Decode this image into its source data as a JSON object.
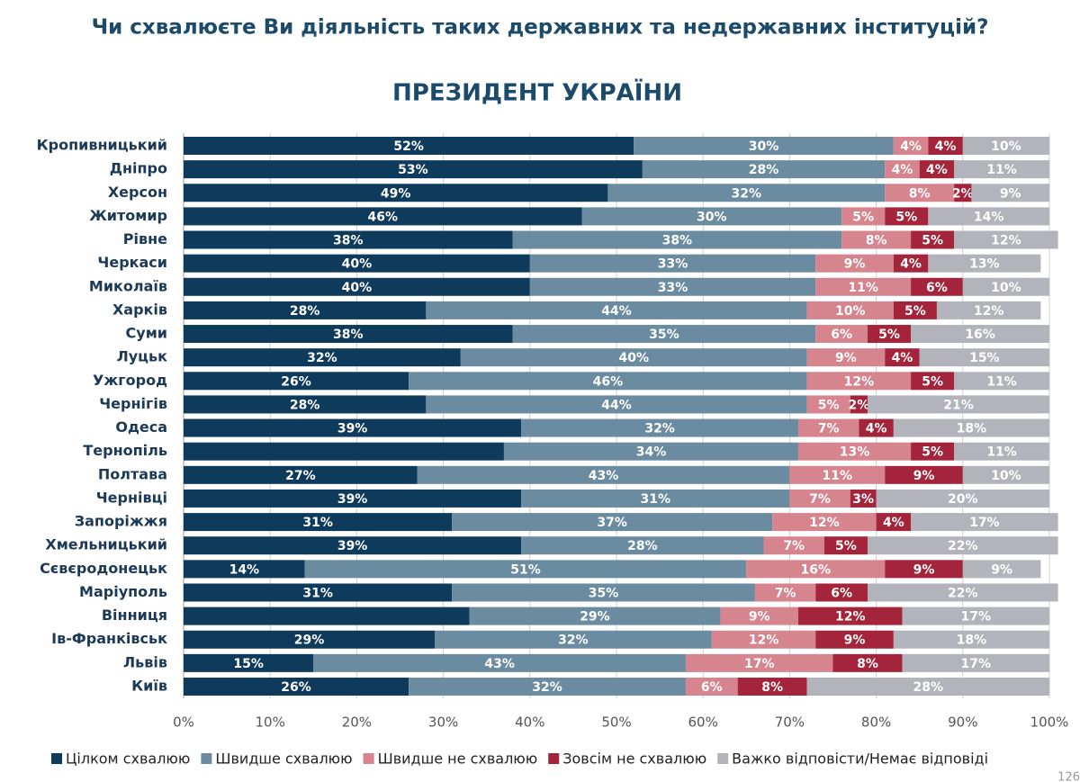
{
  "chart_data": {
    "type": "stacked-bar-horizontal",
    "title": "Чи схвалюєте Ви діяльність таких державних та недержавних інституцій?",
    "subtitle": "ПРЕЗИДЕНТ УКРАЇНИ",
    "categories": [
      "Кропивницький",
      "Дніпро",
      "Херсон",
      "Житомир",
      "Рівне",
      "Черкаси",
      "Миколаїв",
      "Харків",
      "Суми",
      "Луцьк",
      "Ужгород",
      "Чернігів",
      "Одеса",
      "Тернопіль",
      "Полтава",
      "Чернівці",
      "Запоріжжя",
      "Хмельницький",
      "Сєвєродонецьк",
      "Маріуполь",
      "Вінниця",
      "Ів-Франківськ",
      "Львів",
      "Київ"
    ],
    "series": [
      {
        "name": "Цілком схвалюю",
        "color": "#0e3a5c",
        "values": [
          52,
          53,
          49,
          46,
          38,
          40,
          40,
          28,
          38,
          32,
          26,
          28,
          39,
          37,
          27,
          39,
          31,
          39,
          14,
          31,
          33,
          29,
          15,
          26
        ],
        "value_labels": [
          "52%",
          "53%",
          "49%",
          "46%",
          "38%",
          "40%",
          "40%",
          "28%",
          "38%",
          "32%",
          "26%",
          "28%",
          "39%",
          null,
          "27%",
          "39%",
          "31%",
          "39%",
          "14%",
          "31%",
          null,
          "29%",
          "15%",
          "26%"
        ]
      },
      {
        "name": "Швидше схвалюю",
        "color": "#6b8ba1",
        "values": [
          30,
          28,
          32,
          30,
          38,
          33,
          33,
          44,
          35,
          40,
          46,
          44,
          32,
          34,
          43,
          31,
          37,
          28,
          51,
          35,
          29,
          32,
          43,
          32
        ],
        "value_labels": [
          "30%",
          "28%",
          "32%",
          "30%",
          "38%",
          "33%",
          "33%",
          "44%",
          "35%",
          "40%",
          "46%",
          "44%",
          "32%",
          "34%",
          "43%",
          "31%",
          "37%",
          "28%",
          "51%",
          "35%",
          "29%",
          "32%",
          "43%",
          "32%"
        ]
      },
      {
        "name": "Швидше не схвалюю",
        "color": "#d6848d",
        "values": [
          4,
          4,
          8,
          5,
          8,
          9,
          11,
          10,
          6,
          9,
          12,
          5,
          7,
          13,
          11,
          7,
          12,
          7,
          16,
          7,
          9,
          12,
          17,
          6
        ],
        "value_labels": [
          "4%",
          "4%",
          "8%",
          "5%",
          "8%",
          "9%",
          "11%",
          "10%",
          "6%",
          "9%",
          "12%",
          "5%",
          "7%",
          "13%",
          "11%",
          "7%",
          "12%",
          "7%",
          "16%",
          "7%",
          "9%",
          "12%",
          "17%",
          "6%"
        ]
      },
      {
        "name": "Зовсім не схвалюю",
        "color": "#a3243b",
        "values": [
          4,
          4,
          2,
          5,
          5,
          4,
          6,
          5,
          5,
          4,
          5,
          2,
          4,
          5,
          9,
          3,
          4,
          5,
          9,
          6,
          12,
          9,
          8,
          8
        ],
        "value_labels": [
          "4%",
          "4%",
          "2%",
          "5%",
          "5%",
          "4%",
          "6%",
          "5%",
          "5%",
          "4%",
          "5%",
          "2%",
          "4%",
          "5%",
          "9%",
          "3%",
          "4%",
          "5%",
          "9%",
          "6%",
          "12%",
          "9%",
          "8%",
          "8%"
        ]
      },
      {
        "name": "Важко відповісти/Немає відповіді",
        "color": "#b3b3bb",
        "values": [
          10,
          11,
          9,
          14,
          12,
          13,
          10,
          12,
          16,
          15,
          11,
          21,
          18,
          11,
          10,
          20,
          17,
          22,
          9,
          22,
          17,
          18,
          17,
          28
        ],
        "value_labels": [
          "10%",
          "11%",
          "9%",
          "14%",
          "12%",
          "13%",
          "10%",
          "12%",
          "16%",
          "15%",
          "11%",
          "21%",
          "18%",
          "11%",
          "10%",
          "20%",
          "17%",
          "22%",
          "9%",
          "22%",
          "17%",
          "18%",
          "17%",
          "28%"
        ]
      }
    ],
    "xlim": [
      0,
      100
    ],
    "xticks": [
      {
        "value": 0,
        "label": "0%"
      },
      {
        "value": 10,
        "label": "10%"
      },
      {
        "value": 20,
        "label": "20%"
      },
      {
        "value": 30,
        "label": "30%"
      },
      {
        "value": 40,
        "label": "40%"
      },
      {
        "value": 50,
        "label": "50%"
      },
      {
        "value": 60,
        "label": "60%"
      },
      {
        "value": 70,
        "label": "70%"
      },
      {
        "value": 80,
        "label": "80%"
      },
      {
        "value": 90,
        "label": "90%"
      },
      {
        "value": 100,
        "label": "100%"
      }
    ],
    "grid": true,
    "legend": "bottom",
    "page_number": "126"
  }
}
